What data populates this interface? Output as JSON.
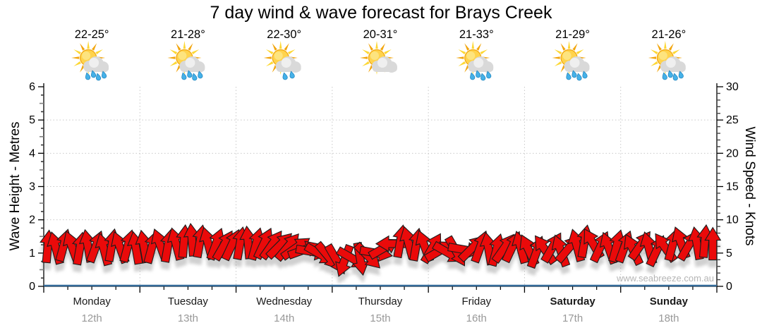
{
  "title": "7 day wind & wave forecast for Brays Creek",
  "watermark": "www.seabreeze.com.au",
  "axes": {
    "left_label": "Wave Height - Metres",
    "right_label": "Wind Speed - Knots"
  },
  "days": [
    {
      "name": "Monday",
      "date": "12th",
      "temp": "22-25°",
      "icon": "sun-cloud-rain",
      "weekend": false
    },
    {
      "name": "Tuesday",
      "date": "13th",
      "temp": "21-28°",
      "icon": "sun-cloud-rain",
      "weekend": false
    },
    {
      "name": "Wednesday",
      "date": "14th",
      "temp": "22-30°",
      "icon": "sun-cloud-light-rain",
      "weekend": false
    },
    {
      "name": "Thursday",
      "date": "15th",
      "temp": "20-31°",
      "icon": "sun-cloud",
      "weekend": false
    },
    {
      "name": "Friday",
      "date": "16th",
      "temp": "21-33°",
      "icon": "sun-cloud-rain",
      "weekend": false
    },
    {
      "name": "Saturday",
      "date": "17th",
      "temp": "21-29°",
      "icon": "sun-cloud-rain",
      "weekend": true
    },
    {
      "name": "Sunday",
      "date": "18th",
      "temp": "21-26°",
      "icon": "sun-cloud-rain",
      "weekend": true
    }
  ],
  "chart_data": {
    "type": "wind-arrows",
    "title": "7 day wind & wave forecast for Brays Creek",
    "categories": [
      "Monday 12th",
      "Tuesday 13th",
      "Wednesday 14th",
      "Thursday 15th",
      "Friday 16th",
      "Saturday 17th",
      "Sunday 18th"
    ],
    "left_axis": {
      "label": "Wave Height - Metres",
      "min": 0,
      "max": 6,
      "major_step": 1,
      "minor_step": 0.25,
      "gridlines": [
        1,
        2,
        3,
        4,
        5
      ]
    },
    "right_axis": {
      "label": "Wind Speed - Knots",
      "min": 0,
      "max": 30,
      "major_step": 5,
      "minor_step": 1
    },
    "x_axis": {
      "minor_ticks_per_day": 4,
      "day_gridlines": true
    },
    "wind": {
      "unit": "knots",
      "samples_per_day": 12,
      "speeds_knots": [
        6.0,
        5.8,
        6.2,
        6.0,
        5.7,
        6.1,
        6.0,
        5.6,
        6.2,
        5.9,
        6.1,
        5.8,
        6.0,
        5.9,
        6.3,
        6.1,
        6.4,
        6.8,
        7.0,
        6.8,
        6.5,
        6.4,
        6.2,
        6.3,
        6.5,
        6.6,
        6.4,
        6.5,
        6.3,
        6.2,
        6.0,
        5.8,
        5.5,
        5.2,
        4.8,
        4.5,
        4.0,
        3.8,
        4.2,
        4.1,
        4.5,
        5.0,
        5.8,
        6.4,
        6.8,
        6.6,
        6.3,
        6.1,
        5.8,
        5.4,
        5.0,
        5.2,
        5.5,
        5.8,
        6.0,
        5.7,
        5.5,
        5.8,
        6.0,
        5.9,
        5.5,
        5.2,
        5.6,
        5.9,
        5.4,
        5.7,
        6.2,
        6.8,
        6.5,
        6.0,
        5.8,
        6.1,
        6.0,
        5.6,
        6.2,
        5.8,
        5.4,
        5.9,
        6.3,
        6.6,
        6.2,
        6.5,
        6.8,
        6.4
      ],
      "directions_deg": [
        5,
        -15,
        15,
        -20,
        10,
        -10,
        20,
        -15,
        10,
        -20,
        15,
        -10,
        -10,
        15,
        -20,
        10,
        -15,
        5,
        -5,
        10,
        -15,
        20,
        30,
        25,
        10,
        -5,
        15,
        25,
        35,
        45,
        40,
        55,
        70,
        100,
        120,
        140,
        150,
        200,
        120,
        170,
        135,
        100,
        60,
        -90,
        10,
        -15,
        10,
        -20,
        30,
        60,
        120,
        150,
        100,
        45,
        20,
        -10,
        15,
        35,
        25,
        -15,
        -25,
        20,
        -35,
        30,
        -20,
        40,
        -15,
        10,
        -30,
        25,
        -20,
        15,
        20,
        -25,
        35,
        -15,
        25,
        -35,
        15,
        -20,
        30,
        -10,
        5,
        0
      ]
    },
    "wave": {
      "unit": "metres",
      "series": "constant",
      "value_m": 0.05
    }
  },
  "colors": {
    "arrow_red": "#ea0a0a",
    "arrow_outline": "#1c1c1c",
    "wave_line": "#336a99",
    "gridline": "#c9c9c9",
    "day_label": "#1a1a1a",
    "date_label": "#999999",
    "watermark": "#b5b5b5",
    "sun_ray": "#f2a50c",
    "sun_body": "#ffd34d",
    "cloud": "#d9d9d9",
    "raindrop": "#45b1e8"
  }
}
